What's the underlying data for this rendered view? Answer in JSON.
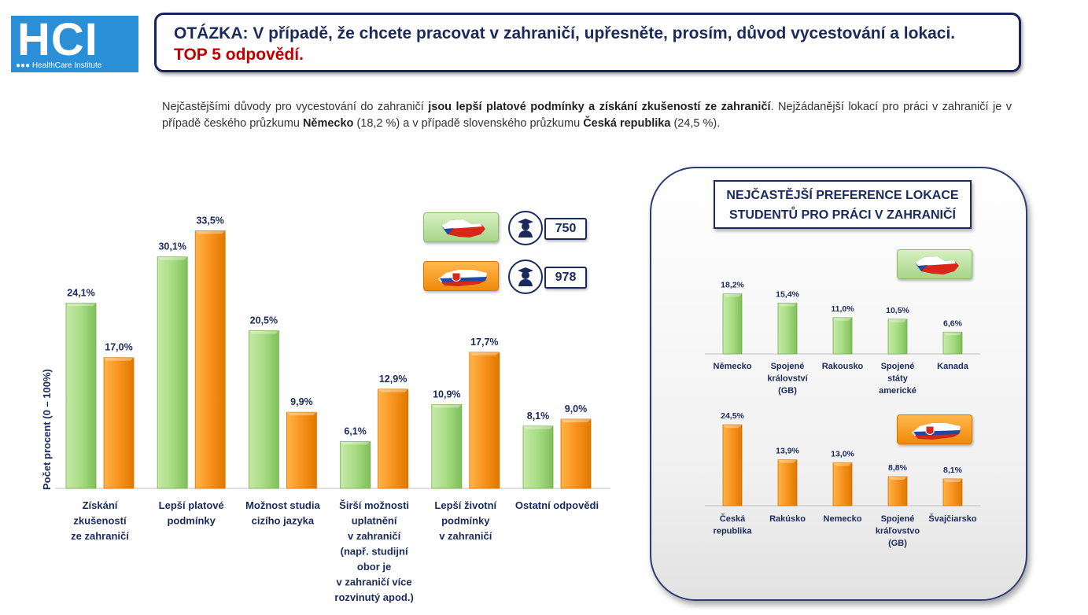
{
  "logo": {
    "text": "HCI",
    "subtitle": "●●● HealthCare Institute"
  },
  "question": {
    "line1": "OTÁZKA: V případě, že chcete pracovat v zahraničí, upřesněte, prosím, důvod vycestování a lokaci.",
    "line2": "TOP 5 odpovědí."
  },
  "summary": {
    "p1": "Nejčastějšími důvody pro vycestování do zahraničí ",
    "b1": "jsou lepší platové podmínky a získání zkušeností ze zahraničí",
    "p2": ". Nejžádanější lokací pro práci v zahraničí je v případě českého průzkumu ",
    "b2": "Německo",
    "p3": " (18,2 %) a v případě slovenského průzkumu ",
    "b3": "Česká republika",
    "p4": " (24,5 %)."
  },
  "legend": {
    "cz_count": "750",
    "sk_count": "978",
    "colors": {
      "cz": "#8fcf6a",
      "sk": "#f7931e"
    },
    "icons": [
      "czech-flag-map-icon",
      "slovak-flag-map-icon",
      "student-icon"
    ]
  },
  "panel": {
    "title_line1": "NEJČASTĚJŠÍ PREFERENCE LOKACE",
    "title_line2": "STUDENTŮ PRO PRÁCI V ZAHRANIČÍ"
  },
  "chart_data": [
    {
      "type": "bar",
      "ylabel": "Počet procent  (0 – 100%)",
      "categories": [
        [
          "Získání",
          "zkušeností",
          "ze zahraničí"
        ],
        [
          "Lepší platové",
          "podmínky"
        ],
        [
          "Možnost studia",
          "cizího jazyka"
        ],
        [
          "Širší možnosti",
          "uplatnění",
          "v zahraničí",
          "(např. studijní",
          "obor je",
          "v zahraničí více",
          "rozvinutý apod.)"
        ],
        [
          "Lepší životní",
          "podmínky",
          "v zahraničí"
        ],
        [
          "Ostatní odpovědi"
        ]
      ],
      "series": [
        {
          "values": [
            24.1,
            30.1,
            20.5,
            6.1,
            10.9,
            8.1
          ],
          "labels": [
            "24,1%",
            "30,1%",
            "20,5%",
            "6,1%",
            "10,9%",
            "8,1%"
          ],
          "color": "#8fcf6a"
        },
        {
          "values": [
            17.0,
            33.5,
            9.9,
            12.9,
            17.7,
            9.0
          ],
          "labels": [
            "17,0%",
            "33,5%",
            "9,9%",
            "12,9%",
            "17,7%",
            "9,0%"
          ],
          "color": "#f7931e"
        }
      ],
      "ylim": [
        0,
        100
      ],
      "grid": false
    },
    {
      "type": "bar",
      "categories": [
        [
          "Německo"
        ],
        [
          "Spojené",
          "království",
          "(GB)"
        ],
        [
          "Rakousko"
        ],
        [
          "Spojené",
          "státy",
          "americké"
        ],
        [
          "Kanada"
        ]
      ],
      "values": [
        18.2,
        15.4,
        11.0,
        10.5,
        6.6
      ],
      "labels": [
        "18,2%",
        "15,4%",
        "11,0%",
        "10,5%",
        "6,6%"
      ],
      "color": "#8fcf6a"
    },
    {
      "type": "bar",
      "categories": [
        [
          "Česká",
          "republika"
        ],
        [
          "Rakúsko"
        ],
        [
          "Nemecko"
        ],
        [
          "Spojené",
          "kráľovstvo",
          "(GB)"
        ],
        [
          "Švajčiarsko"
        ]
      ],
      "values": [
        24.5,
        13.9,
        13.0,
        8.8,
        8.1
      ],
      "labels": [
        "24,5%",
        "13,9%",
        "13,0%",
        "8,8%",
        "8,1%"
      ],
      "color": "#f7931e"
    }
  ]
}
